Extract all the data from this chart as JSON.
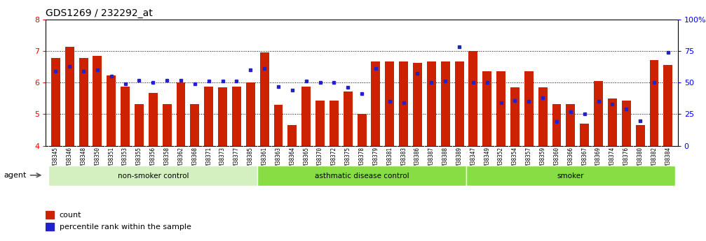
{
  "title": "GDS1269 / 232292_at",
  "samples": [
    "GSM38345",
    "GSM38346",
    "GSM38348",
    "GSM38350",
    "GSM38351",
    "GSM38353",
    "GSM38355",
    "GSM38356",
    "GSM38358",
    "GSM38362",
    "GSM38368",
    "GSM38371",
    "GSM38373",
    "GSM38377",
    "GSM38385",
    "GSM38361",
    "GSM38363",
    "GSM38364",
    "GSM38365",
    "GSM38370",
    "GSM38372",
    "GSM38375",
    "GSM38378",
    "GSM38379",
    "GSM38381",
    "GSM38383",
    "GSM38386",
    "GSM38387",
    "GSM38388",
    "GSM38389",
    "GSM38347",
    "GSM38349",
    "GSM38352",
    "GSM38354",
    "GSM38357",
    "GSM38359",
    "GSM38360",
    "GSM38366",
    "GSM38367",
    "GSM38369",
    "GSM38374",
    "GSM38376",
    "GSM38380",
    "GSM38382",
    "GSM38384"
  ],
  "counts": [
    6.78,
    7.12,
    6.78,
    6.85,
    6.22,
    5.88,
    5.33,
    5.67,
    5.33,
    6.0,
    5.33,
    5.87,
    5.85,
    5.87,
    6.0,
    6.95,
    5.3,
    4.65,
    5.87,
    5.42,
    5.42,
    5.72,
    5.0,
    6.67,
    6.67,
    6.67,
    6.63,
    6.67,
    6.67,
    6.67,
    7.0,
    6.35,
    6.35,
    5.85,
    6.35,
    5.85,
    5.33,
    5.33,
    4.7,
    6.05,
    5.5,
    5.42,
    4.65,
    6.72,
    6.55
  ],
  "percentile": [
    59,
    63,
    59,
    60,
    55,
    49,
    52,
    50,
    52,
    52,
    49,
    51,
    51,
    51,
    60,
    61,
    47,
    44,
    51,
    50,
    50,
    46,
    41,
    61,
    35,
    34,
    57,
    50,
    51,
    78,
    50,
    50,
    34,
    36,
    35,
    38,
    19,
    27,
    25,
    35,
    33,
    29,
    20,
    50,
    74
  ],
  "groups": [
    {
      "label": "non-smoker control",
      "start": 0,
      "end": 14,
      "color": "#d4f0c0"
    },
    {
      "label": "asthmatic disease control",
      "start": 15,
      "end": 29,
      "color": "#88dd44"
    },
    {
      "label": "smoker",
      "start": 30,
      "end": 44,
      "color": "#88dd44"
    }
  ],
  "ylim_left": [
    4,
    8
  ],
  "ylim_right": [
    0,
    100
  ],
  "bar_color": "#cc2200",
  "dot_color": "#2222cc",
  "bar_bottom": 4.0,
  "yticks_left": [
    4,
    5,
    6,
    7,
    8
  ],
  "yticks_right": [
    0,
    25,
    50,
    75,
    100
  ],
  "ytick_labels_right": [
    "0",
    "25",
    "50",
    "75",
    "100%"
  ],
  "tick_label_bg": "#e8e8e8",
  "agent_label": "agent",
  "legend_count": "count",
  "legend_pct": "percentile rank within the sample"
}
